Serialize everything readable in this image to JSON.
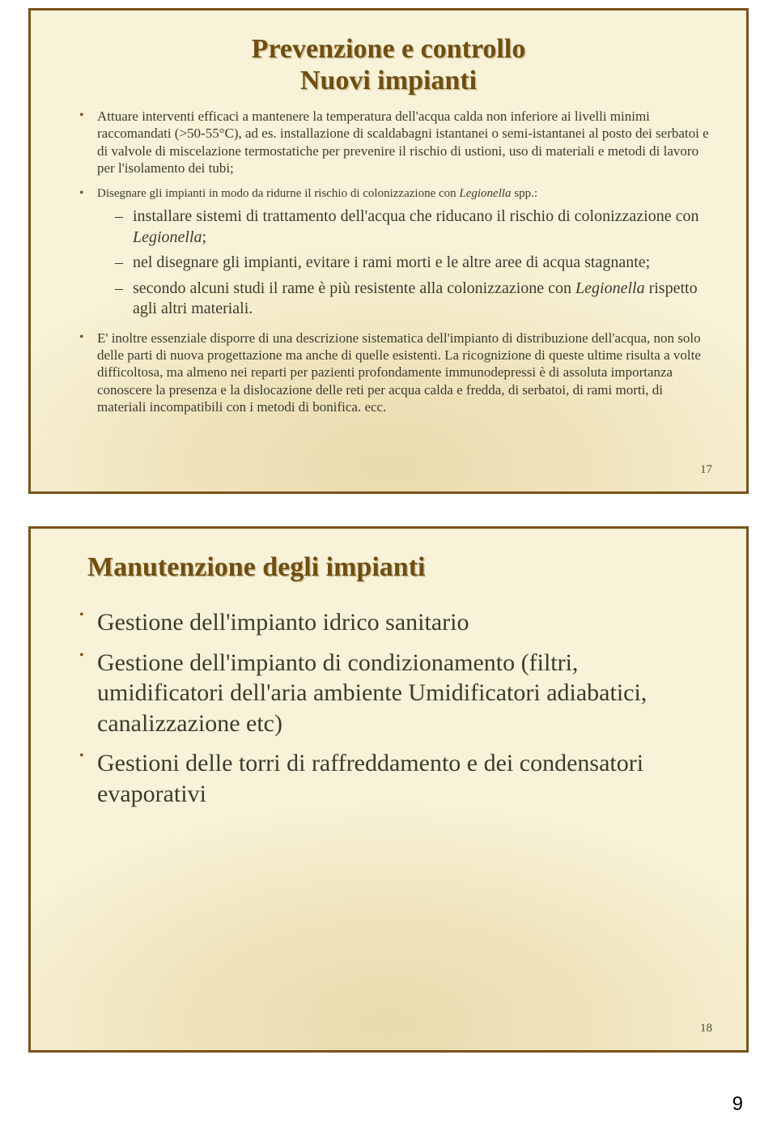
{
  "colors": {
    "border": "#7a521e",
    "background": "#f8f3d8",
    "title": "#6f4e12",
    "titleShadow": "rgba(140,110,50,0.35)",
    "body": "#3b3b2e",
    "bullet": "#7a521e",
    "glow": "rgba(210,175,95,0.35)"
  },
  "fonts": {
    "body": "Garamond / Georgia serif",
    "title_size_pt": 26,
    "body_small_pt": 13,
    "body_xs_pt": 11,
    "body_md_pt": 15,
    "body_lg_pt": 22
  },
  "slide1": {
    "title_l1": "Prevenzione e controllo",
    "title_l2": "Nuovi impianti",
    "b1": "Attuare interventi efficaci a mantenere la temperatura dell'acqua calda non inferiore ai livelli minimi raccomandati (>50-55°C), ad es. installazione di scaldabagni istantanei o semi-istantanei al posto dei serbatoi e di valvole di miscelazione termostatiche per prevenire il rischio di ustioni, uso di materiali e metodi di lavoro per l'isolamento dei tubi;",
    "b2_lead_a": "Disegnare gli impianti in modo da ridurne il rischio di colonizzazione con ",
    "b2_lead_ital": "Legionella",
    "b2_lead_b": " spp.:",
    "b2_s1_a": "installare sistemi di trattamento dell'acqua che riducano il rischio di colonizzazione con ",
    "b2_s1_ital": "Legionella",
    "b2_s1_b": ";",
    "b2_s2": "nel disegnare gli impianti, evitare i rami morti e le altre aree di acqua stagnante;",
    "b2_s3_a": "secondo alcuni studi il rame è più resistente alla colonizzazione con ",
    "b2_s3_ital": "Legionella",
    "b2_s3_b": " rispetto agli altri materiali.",
    "b3": "E' inoltre essenziale disporre di una descrizione sistematica dell'impianto di distribuzione dell'acqua, non solo delle parti di nuova progettazione ma anche di quelle esistenti. La ricognizione di queste ultime risulta a volte difficoltosa, ma almeno nei reparti per pazienti profondamente immunodepressi è di assoluta importanza conoscere la presenza e la dislocazione delle reti per acqua calda e fredda, di serbatoi, di rami morti, di materiali incompatibili con i metodi di bonifica. ecc.",
    "num": "17"
  },
  "slide2": {
    "title": "Manutenzione degli impianti",
    "b1": "Gestione dell'impianto idrico sanitario",
    "b2": "Gestione dell'impianto di condizionamento (filtri, umidificatori dell'aria ambiente Umidificatori adiabatici, canalizzazione etc)",
    "b3": "Gestioni delle torri di raffreddamento e dei condensatori evaporativi",
    "num": "18"
  },
  "pagenum": "9"
}
